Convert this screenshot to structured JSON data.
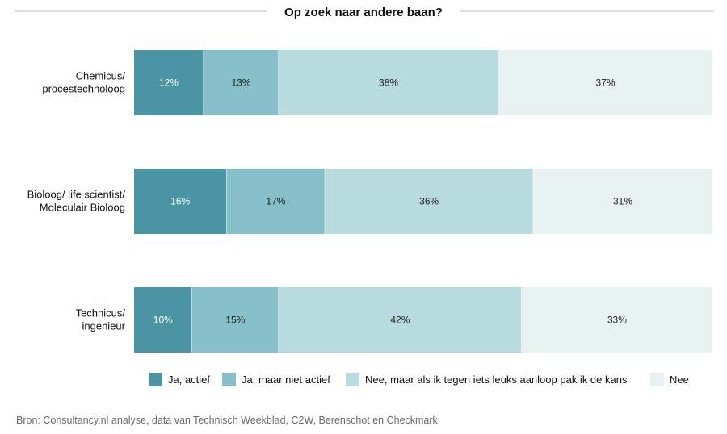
{
  "chart_data": {
    "type": "bar",
    "orientation": "horizontal",
    "stacked": true,
    "title": "Op zoek naar andere baan?",
    "categories": [
      "Chemicus/ procestechnoloog",
      "Bioloog/ life scientist/ Moleculair Bioloog",
      "Technicus/ ingenieur"
    ],
    "category_lines": [
      [
        "Chemicus/",
        "procestechnoloog"
      ],
      [
        "Bioloog/ life scientist/",
        "Moleculair Bioloog"
      ],
      [
        "Technicus/",
        "ingenieur"
      ]
    ],
    "series": [
      {
        "name": "Ja, actief",
        "values": [
          12,
          16,
          10
        ],
        "labels": [
          "12%",
          "16%",
          "10%"
        ],
        "color": "#4a94a3",
        "label_color": "#ffffff"
      },
      {
        "name": "Ja, maar niet actief",
        "values": [
          13,
          17,
          15
        ],
        "labels": [
          "13%",
          "17%",
          "15%"
        ],
        "color": "#86bfc9",
        "label_color": "#1f1f1f"
      },
      {
        "name": "Nee, maar als ik tegen iets leuks aanloop pak ik de kans",
        "values": [
          38,
          36,
          42
        ],
        "labels": [
          "38%",
          "36%",
          "42%"
        ],
        "color": "#b8dbe0",
        "label_color": "#1f1f1f"
      },
      {
        "name": "Nee",
        "values": [
          37,
          31,
          33
        ],
        "labels": [
          "37%",
          "31%",
          "33%"
        ],
        "color": "#e8f2f3",
        "label_color": "#1f1f1f"
      }
    ],
    "xlim": [
      0,
      100
    ],
    "grid": false,
    "legend_position": "bottom",
    "source": "Bron: Consultancy.nl analyse, data van Technisch Weekblad, C2W,  Berenschot en Checkmark"
  },
  "colors": {
    "bar_track": "#e8f2f3",
    "title_rule": "#bfbfbf",
    "text": "#111111",
    "source_text": "#6b6b6b"
  }
}
